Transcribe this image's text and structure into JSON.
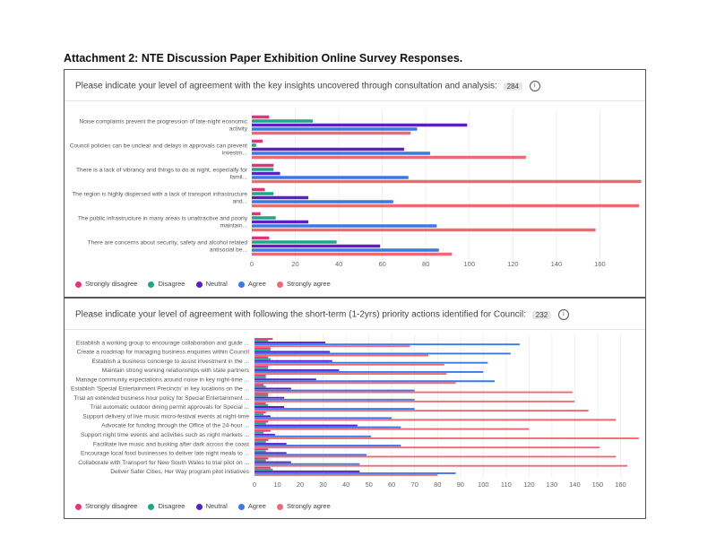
{
  "header": {
    "title": "Attachment 2: NTE Discussion Paper Exhibition Online Survey Responses."
  },
  "legend": {
    "items": [
      {
        "label": "Strongly disagree",
        "color": "#e0357a"
      },
      {
        "label": "Disagree",
        "color": "#1fa68a"
      },
      {
        "label": "Neutral",
        "color": "#5b1fc4"
      },
      {
        "label": "Agree",
        "color": "#3a78e6"
      },
      {
        "label": "Strongly agree",
        "color": "#ee6a72"
      }
    ]
  },
  "panels": [
    {
      "question": "Please indicate your level of agreement with the key insights uncovered through consultation and analysis:",
      "count": "284",
      "info_icon": "info-icon"
    },
    {
      "question": "Please indicate your level of agreement with following the short-term (1-2yrs) priority actions identified for Council:",
      "count": "232",
      "info_icon": "info-icon"
    }
  ],
  "chart_data": [
    {
      "type": "bar",
      "orientation": "horizontal",
      "grouped": true,
      "grid": true,
      "legend_position": "bottom-left",
      "xlim": [
        0,
        180
      ],
      "xticks": [
        "0",
        "20",
        "40",
        "60",
        "80",
        "100",
        "120",
        "140",
        "160"
      ],
      "categories": [
        [
          "Noise complaints prevent the progression of late-night economic",
          "activity"
        ],
        [
          "Council policies can be unclear and delays in approvals can prevent",
          "investm..."
        ],
        [
          "There is a lack of vibrancy and things to do at night, especially for",
          "famil..."
        ],
        [
          "The region is highly dispersed with a lack of transport infrastructure",
          "and..."
        ],
        [
          "The public infrastructure in many areas is unattractive and poorly",
          "maintain..."
        ],
        [
          "There are concerns about security, safety and alcohol related",
          "antisocial be..."
        ]
      ],
      "series": [
        {
          "name": "Strongly disagree",
          "color": "#e0357a",
          "values": [
            8,
            5,
            10,
            6,
            4,
            8
          ]
        },
        {
          "name": "Disagree",
          "color": "#1fa68a",
          "values": [
            28,
            2,
            10,
            10,
            11,
            39
          ]
        },
        {
          "name": "Neutral",
          "color": "#5b1fc4",
          "values": [
            99,
            70,
            13,
            26,
            26,
            59
          ]
        },
        {
          "name": "Agree",
          "color": "#3a78e6",
          "values": [
            76,
            82,
            72,
            65,
            85,
            86
          ]
        },
        {
          "name": "Strongly agree",
          "color": "#ee6a72",
          "values": [
            73,
            126,
            179,
            178,
            158,
            92
          ]
        }
      ]
    },
    {
      "type": "bar",
      "orientation": "horizontal",
      "grouped": true,
      "grid": true,
      "legend_position": "bottom-left",
      "xlim": [
        0,
        170
      ],
      "xticks": [
        "0",
        "10",
        "20",
        "30",
        "40",
        "50",
        "60",
        "70",
        "80",
        "90",
        "100",
        "110",
        "120",
        "130",
        "140",
        "150",
        "160"
      ],
      "categories": [
        "Establish a working group to encourage collaboration and guide ...",
        "Create a roadmap for managing business enquiries within Council",
        "Establish a business concierge to assist investment in the ...",
        "Maintain strong working relationships with state partners",
        "Manage community expectations around noise in key night-time ...",
        "Establish 'Special Entertainment Precincts' in key locations on the ...",
        "Trial an extended business hour policy for Special Entertainment ...",
        "Trial automatic outdoor dining permit approvals for Special ...",
        "Support delivery of live music micro-festival events at night-time",
        "Advocate for funding through the Office of the 24-hour ...",
        "Support night time events and activities such as night markets ...",
        "Facilitate live music and busking after dark across the coast",
        "Encourage local food businesses to deliver late night meals to ...",
        "Collaborate with Transport for New South Wales to trial pilot on ...",
        "Deliver Safer Cities, Her Way program pilot initiatives"
      ],
      "series": [
        {
          "name": "Strongly disagree",
          "color": "#e0357a",
          "values": [
            8,
            7,
            6,
            6,
            5,
            4,
            6,
            5,
            5,
            6,
            7,
            6,
            6,
            6,
            7
          ]
        },
        {
          "name": "Disagree",
          "color": "#1fa68a",
          "values": [
            6,
            7,
            7,
            6,
            5,
            5,
            6,
            6,
            4,
            5,
            4,
            5,
            5,
            5,
            8
          ]
        },
        {
          "name": "Neutral",
          "color": "#5b1fc4",
          "values": [
            31,
            33,
            34,
            37,
            27,
            16,
            13,
            13,
            7,
            45,
            9,
            14,
            14,
            16,
            46
          ]
        },
        {
          "name": "Agree",
          "color": "#3a78e6",
          "values": [
            116,
            112,
            102,
            100,
            105,
            70,
            70,
            70,
            60,
            64,
            51,
            64,
            49,
            46,
            88
          ]
        },
        {
          "name": "Strongly agree",
          "color": "#ee6a72",
          "values": [
            68,
            76,
            83,
            84,
            88,
            139,
            140,
            146,
            158,
            120,
            168,
            151,
            158,
            163,
            80
          ]
        }
      ]
    }
  ]
}
